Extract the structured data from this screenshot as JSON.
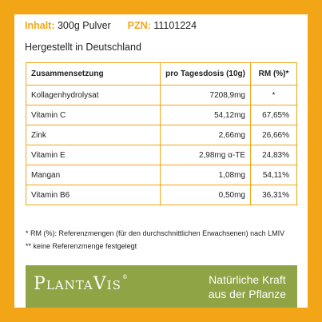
{
  "info": {
    "content_label": "Inhalt:",
    "content_value": "300g Pulver",
    "pzn_label": "PZN:",
    "pzn_value": "11101224"
  },
  "made_in": "Hergestellt in Deutschland",
  "table": {
    "headers": [
      "Zusammensetzung",
      "pro Tagesdosis (10g)",
      "RM (%)*"
    ],
    "rows": [
      [
        "Kollagenhydrolysat",
        "7208,9mg",
        "*"
      ],
      [
        "Vitamin C",
        "54,12mg",
        "67,65%"
      ],
      [
        "Zink",
        "2,66mg",
        "26,66%"
      ],
      [
        "Vitamin E",
        "2,98mg α-TE",
        "24,83%"
      ],
      [
        "Mangan",
        "1,08mg",
        "54,11%"
      ],
      [
        "Vitamin B6",
        "0,50mg",
        "36,31%"
      ]
    ]
  },
  "notes": {
    "note1": "* RM (%): Referenzmengen (für den durchschnittlichen Erwachsenen) nach LMIV",
    "note2": "** keine Referenzmenge festgelegt"
  },
  "banner": {
    "logo": "PLANTAVIS",
    "slogan_line1": "Natürliche Kraft",
    "slogan_line2": "aus der Pflanze"
  },
  "colors": {
    "frame": "#f2a516",
    "banner": "#8ea445"
  }
}
